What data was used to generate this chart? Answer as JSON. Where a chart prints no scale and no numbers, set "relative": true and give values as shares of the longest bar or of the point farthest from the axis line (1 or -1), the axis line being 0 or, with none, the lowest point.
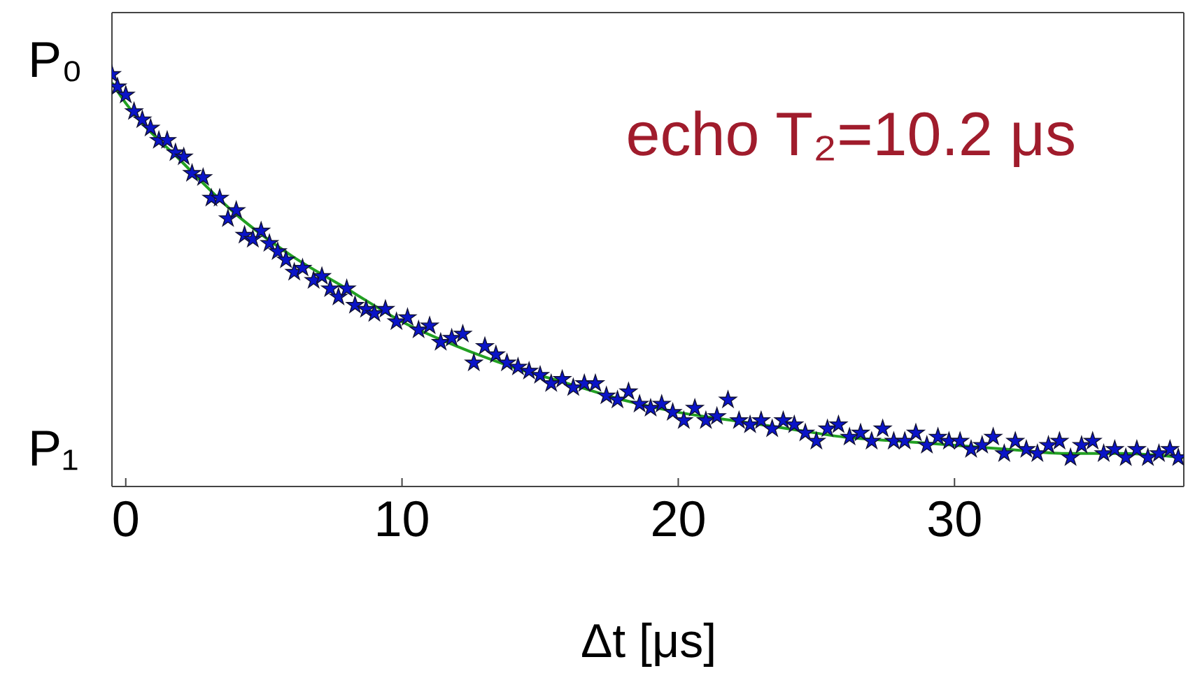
{
  "chart_data": {
    "type": "scatter",
    "xlabel": "Δt [μs]",
    "annotations": [
      "echo T₂=10.2 μs",
      "P₀",
      "P₁"
    ],
    "xlim": [
      -0.5,
      38.3
    ],
    "xticks": [
      0,
      10,
      20,
      30
    ],
    "relative": true,
    "series": [
      {
        "color": "#0a14c8",
        "marker": "star",
        "x": [
          -0.5,
          -0.3,
          0,
          0.3,
          0.6,
          0.9,
          1.2,
          1.5,
          1.8,
          2.1,
          2.4,
          2.8,
          3.1,
          3.4,
          3.7,
          4.0,
          4.3,
          4.6,
          4.9,
          5.2,
          5.5,
          5.8,
          6.1,
          6.4,
          6.8,
          7.1,
          7.4,
          7.7,
          8.0,
          8.3,
          8.7,
          9.0,
          9.4,
          9.8,
          10.2,
          10.6,
          11.0,
          11.4,
          11.8,
          12.2,
          12.6,
          13.0,
          13.4,
          13.8,
          14.2,
          14.6,
          15.0,
          15.4,
          15.8,
          16.2,
          16.6,
          17.0,
          17.4,
          17.8,
          18.2,
          18.6,
          19.0,
          19.4,
          19.8,
          20.2,
          20.6,
          21.0,
          21.4,
          21.8,
          22.2,
          22.6,
          23.0,
          23.4,
          23.8,
          24.2,
          24.6,
          25.0,
          25.4,
          25.8,
          26.2,
          26.6,
          27.0,
          27.4,
          27.8,
          28.2,
          28.6,
          29.0,
          29.4,
          29.8,
          30.2,
          30.6,
          31.0,
          31.4,
          31.8,
          32.2,
          32.6,
          33.0,
          33.4,
          33.8,
          34.2,
          34.6,
          35.0,
          35.4,
          35.8,
          36.2,
          36.6,
          37.0,
          37.4,
          37.8,
          38.1
        ],
        "values": [
          1,
          0.97,
          0.95,
          0.91,
          0.89,
          0.87,
          0.84,
          0.84,
          0.81,
          0.8,
          0.76,
          0.75,
          0.7,
          0.7,
          0.65,
          0.67,
          0.61,
          0.6,
          0.62,
          0.59,
          0.57,
          0.55,
          0.52,
          0.53,
          0.5,
          0.51,
          0.48,
          0.46,
          0.48,
          0.44,
          0.43,
          0.42,
          0.43,
          0.4,
          0.41,
          0.38,
          0.39,
          0.35,
          0.36,
          0.37,
          0.3,
          0.34,
          0.32,
          0.3,
          0.29,
          0.28,
          0.27,
          0.25,
          0.26,
          0.24,
          0.25,
          0.25,
          0.22,
          0.21,
          0.23,
          0.2,
          0.19,
          0.2,
          0.18,
          0.16,
          0.19,
          0.16,
          0.17,
          0.21,
          0.16,
          0.15,
          0.16,
          0.14,
          0.16,
          0.15,
          0.13,
          0.11,
          0.14,
          0.15,
          0.12,
          0.13,
          0.11,
          0.14,
          0.11,
          0.11,
          0.13,
          0.1,
          0.12,
          0.11,
          0.11,
          0.09,
          0.1,
          0.12,
          0.08,
          0.11,
          0.09,
          0.08,
          0.1,
          0.11,
          0.07,
          0.1,
          0.11,
          0.08,
          0.09,
          0.07,
          0.09,
          0.07,
          0.08,
          0.09,
          0.07
        ]
      },
      {
        "type": "line",
        "color": "#22a022",
        "marker": "none",
        "x": [
          -0.5,
          0,
          2,
          4,
          6,
          8,
          10,
          12,
          14,
          16,
          18,
          20,
          22,
          24,
          26,
          28,
          30,
          32,
          34,
          36,
          38.3
        ],
        "values": [
          0.98,
          0.93,
          0.79,
          0.66,
          0.56,
          0.48,
          0.4,
          0.34,
          0.29,
          0.25,
          0.21,
          0.18,
          0.16,
          0.14,
          0.12,
          0.11,
          0.1,
          0.09,
          0.08,
          0.08,
          0.07
        ]
      }
    ]
  }
}
